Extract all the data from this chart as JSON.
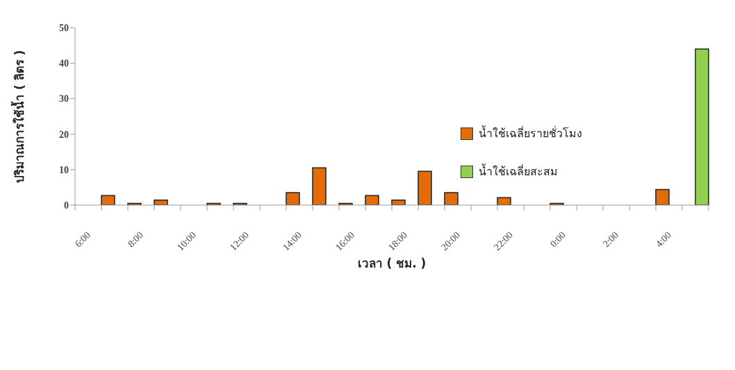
{
  "chart_data": {
    "type": "bar",
    "xlabel": "เวลา ( ชม. )",
    "ylabel": "ปริมาณการใช้น้ำ ( ลิตร )",
    "categories": [
      "6:00",
      null,
      "8:00",
      null,
      "10:00",
      null,
      "12:00",
      null,
      "14:00",
      null,
      "16:00",
      null,
      "18:00",
      null,
      "20:00",
      null,
      "22:00",
      null,
      "0:00",
      null,
      "2:00",
      null,
      "4:00",
      null
    ],
    "series": [
      {
        "name": "น้ำใช้เฉลี่ยรายชั่วโมง",
        "color": "#e36c09",
        "values": [
          0,
          2.7,
          0.5,
          1.4,
          0,
          0.5,
          0.5,
          0,
          3.5,
          10.5,
          0.5,
          2.7,
          1.4,
          9.5,
          3.5,
          0,
          2.1,
          0,
          0.5,
          0,
          0,
          0,
          4.4,
          0
        ]
      },
      {
        "name": "น้ำใช้เฉลี่ยสะสม",
        "color": "#92d050",
        "values": [
          null,
          null,
          null,
          null,
          null,
          null,
          null,
          null,
          null,
          null,
          null,
          null,
          null,
          null,
          null,
          null,
          null,
          null,
          null,
          null,
          null,
          null,
          null,
          44
        ]
      }
    ],
    "ylim": [
      0,
      50
    ],
    "yticks": [
      0,
      10,
      20,
      30,
      40,
      50
    ],
    "grid": false,
    "legend": "right"
  }
}
